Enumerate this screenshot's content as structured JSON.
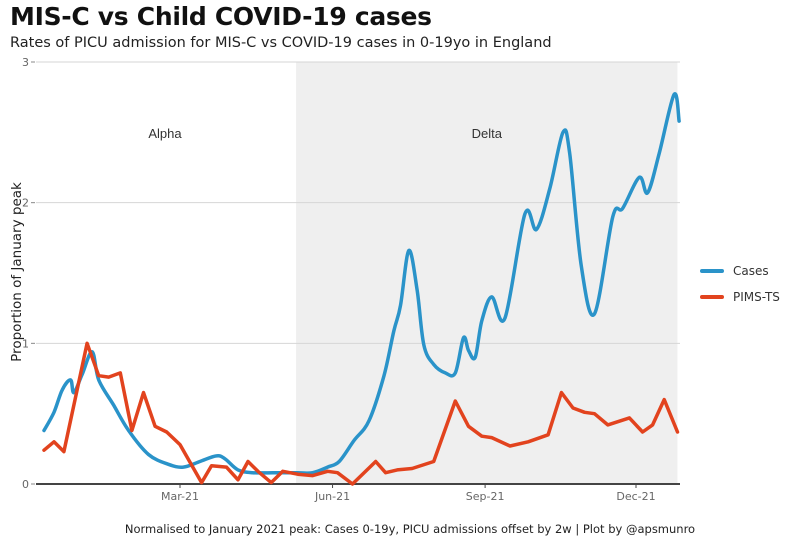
{
  "title": "MIS-C vs Child COVID-19 cases",
  "subtitle": "Rates of PICU admission for MIS-C vs COVID-19 cases in 0-19yo in England",
  "caption": "Normalised to January 2021 peak: Cases 0-19y, PICU admissions offset by 2w | Plot by @apsmunro",
  "chart_data": {
    "type": "line",
    "title": "MIS-C vs Child COVID-19 cases",
    "subtitle": "Rates of PICU admission for MIS-C vs COVID-19 cases in 0-19yo in England",
    "xlabel": "",
    "ylabel": "Proportion of January peak",
    "xlim": [
      "2020-12-07",
      "2021-12-31"
    ],
    "ylim": [
      0,
      3
    ],
    "x_ticks": [
      {
        "date": "2021-03-01",
        "label": "Mar-21"
      },
      {
        "date": "2021-06-01",
        "label": "Jun-21"
      },
      {
        "date": "2021-09-01",
        "label": "Sep-21"
      },
      {
        "date": "2021-12-01",
        "label": "Dec-21"
      }
    ],
    "y_ticks": [
      0,
      1,
      2,
      3
    ],
    "y_tick_labels": [
      "0",
      "1",
      "2",
      "3"
    ],
    "grid": "horizontal",
    "legend": {
      "placement": "right",
      "entries": [
        "Cases",
        "PIMS-TS"
      ]
    },
    "shaded_periods": [
      {
        "label": "Alpha",
        "start": null,
        "end": null
      },
      {
        "label": "Delta",
        "start": "2021-05-10",
        "end": "2021-12-26",
        "fill": "#efefef"
      }
    ],
    "series": [
      {
        "name": "Cases",
        "color": "#2a93c9",
        "points": [
          [
            "2020-12-09",
            0.38
          ],
          [
            "2020-12-15",
            0.51
          ],
          [
            "2020-12-20",
            0.67
          ],
          [
            "2020-12-25",
            0.74
          ],
          [
            "2020-12-27",
            0.65
          ],
          [
            "2021-01-01",
            0.78
          ],
          [
            "2021-01-07",
            0.94
          ],
          [
            "2021-01-11",
            0.74
          ],
          [
            "2021-01-20",
            0.56
          ],
          [
            "2021-01-29",
            0.38
          ],
          [
            "2021-02-10",
            0.21
          ],
          [
            "2021-02-22",
            0.14
          ],
          [
            "2021-03-03",
            0.12
          ],
          [
            "2021-03-13",
            0.16
          ],
          [
            "2021-03-23",
            0.2
          ],
          [
            "2021-03-28",
            0.18
          ],
          [
            "2021-04-05",
            0.1
          ],
          [
            "2021-04-14",
            0.08
          ],
          [
            "2021-04-26",
            0.08
          ],
          [
            "2021-05-11",
            0.08
          ],
          [
            "2021-05-20",
            0.08
          ],
          [
            "2021-05-29",
            0.12
          ],
          [
            "2021-06-05",
            0.16
          ],
          [
            "2021-06-14",
            0.31
          ],
          [
            "2021-06-23",
            0.45
          ],
          [
            "2021-07-02",
            0.77
          ],
          [
            "2021-07-08",
            1.09
          ],
          [
            "2021-07-12",
            1.27
          ],
          [
            "2021-07-17",
            1.66
          ],
          [
            "2021-07-22",
            1.38
          ],
          [
            "2021-07-26",
            0.99
          ],
          [
            "2021-08-01",
            0.85
          ],
          [
            "2021-08-08",
            0.79
          ],
          [
            "2021-08-14",
            0.79
          ],
          [
            "2021-08-19",
            1.04
          ],
          [
            "2021-08-22",
            0.95
          ],
          [
            "2021-08-26",
            0.9
          ],
          [
            "2021-08-30",
            1.16
          ],
          [
            "2021-09-05",
            1.33
          ],
          [
            "2021-09-13",
            1.18
          ],
          [
            "2021-09-25",
            1.92
          ],
          [
            "2021-10-02",
            1.81
          ],
          [
            "2021-10-10",
            2.1
          ],
          [
            "2021-10-18",
            2.5
          ],
          [
            "2021-10-22",
            2.35
          ],
          [
            "2021-10-29",
            1.55
          ],
          [
            "2021-11-06",
            1.21
          ],
          [
            "2021-11-17",
            1.9
          ],
          [
            "2021-11-23",
            1.96
          ],
          [
            "2021-12-03",
            2.18
          ],
          [
            "2021-12-08",
            2.07
          ],
          [
            "2021-12-15",
            2.35
          ],
          [
            "2021-12-24",
            2.77
          ],
          [
            "2021-12-27",
            2.58
          ]
        ]
      },
      {
        "name": "PIMS-TS",
        "color": "#e2431e",
        "points": [
          [
            "2020-12-09",
            0.24
          ],
          [
            "2020-12-15",
            0.3
          ],
          [
            "2020-12-21",
            0.23
          ],
          [
            "2021-01-04",
            1.0
          ],
          [
            "2021-01-11",
            0.77
          ],
          [
            "2021-01-17",
            0.76
          ],
          [
            "2021-01-24",
            0.79
          ],
          [
            "2021-01-31",
            0.38
          ],
          [
            "2021-02-07",
            0.65
          ],
          [
            "2021-02-14",
            0.41
          ],
          [
            "2021-02-21",
            0.37
          ],
          [
            "2021-03-01",
            0.28
          ],
          [
            "2021-03-14",
            0.01
          ],
          [
            "2021-03-20",
            0.13
          ],
          [
            "2021-03-29",
            0.12
          ],
          [
            "2021-04-05",
            0.03
          ],
          [
            "2021-04-11",
            0.16
          ],
          [
            "2021-04-17",
            0.09
          ],
          [
            "2021-04-25",
            0.01
          ],
          [
            "2021-05-02",
            0.09
          ],
          [
            "2021-05-11",
            0.07
          ],
          [
            "2021-05-20",
            0.06
          ],
          [
            "2021-05-29",
            0.09
          ],
          [
            "2021-06-04",
            0.08
          ],
          [
            "2021-06-13",
            0.0
          ],
          [
            "2021-06-27",
            0.16
          ],
          [
            "2021-07-03",
            0.08
          ],
          [
            "2021-07-10",
            0.1
          ],
          [
            "2021-07-19",
            0.11
          ],
          [
            "2021-08-01",
            0.16
          ],
          [
            "2021-08-14",
            0.59
          ],
          [
            "2021-08-22",
            0.41
          ],
          [
            "2021-08-30",
            0.34
          ],
          [
            "2021-09-05",
            0.33
          ],
          [
            "2021-09-16",
            0.27
          ],
          [
            "2021-09-27",
            0.3
          ],
          [
            "2021-10-09",
            0.35
          ],
          [
            "2021-10-17",
            0.65
          ],
          [
            "2021-10-24",
            0.54
          ],
          [
            "2021-10-31",
            0.51
          ],
          [
            "2021-11-06",
            0.5
          ],
          [
            "2021-11-14",
            0.42
          ],
          [
            "2021-11-27",
            0.47
          ],
          [
            "2021-12-05",
            0.37
          ],
          [
            "2021-12-11",
            0.42
          ],
          [
            "2021-12-18",
            0.6
          ],
          [
            "2021-12-26",
            0.37
          ]
        ]
      }
    ]
  }
}
